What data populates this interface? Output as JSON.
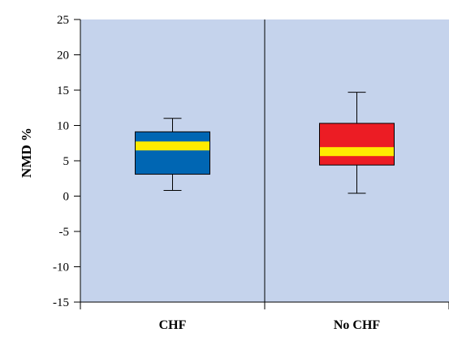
{
  "chart_data": {
    "type": "box",
    "title": "",
    "xlabel": "",
    "ylabel": "NMD %",
    "ylim": [
      -15,
      25
    ],
    "yticks": [
      25,
      20,
      15,
      10,
      5,
      0,
      -5,
      -10,
      -15
    ],
    "categories": [
      "CHF",
      "No CHF"
    ],
    "boxes": [
      {
        "category": "CHF",
        "min": 0.8,
        "q1": 3.1,
        "median": 7.1,
        "q3": 9.1,
        "max": 11.0,
        "box_color": "#0066b3",
        "median_color": "#ffeb00"
      },
      {
        "category": "No CHF",
        "min": 0.4,
        "q1": 4.4,
        "median": 6.3,
        "q3": 10.3,
        "max": 14.7,
        "box_color": "#ec1c24",
        "median_color": "#ffeb00"
      }
    ],
    "plot_background": "#c5d3ec",
    "grid": false,
    "legend": "none"
  }
}
